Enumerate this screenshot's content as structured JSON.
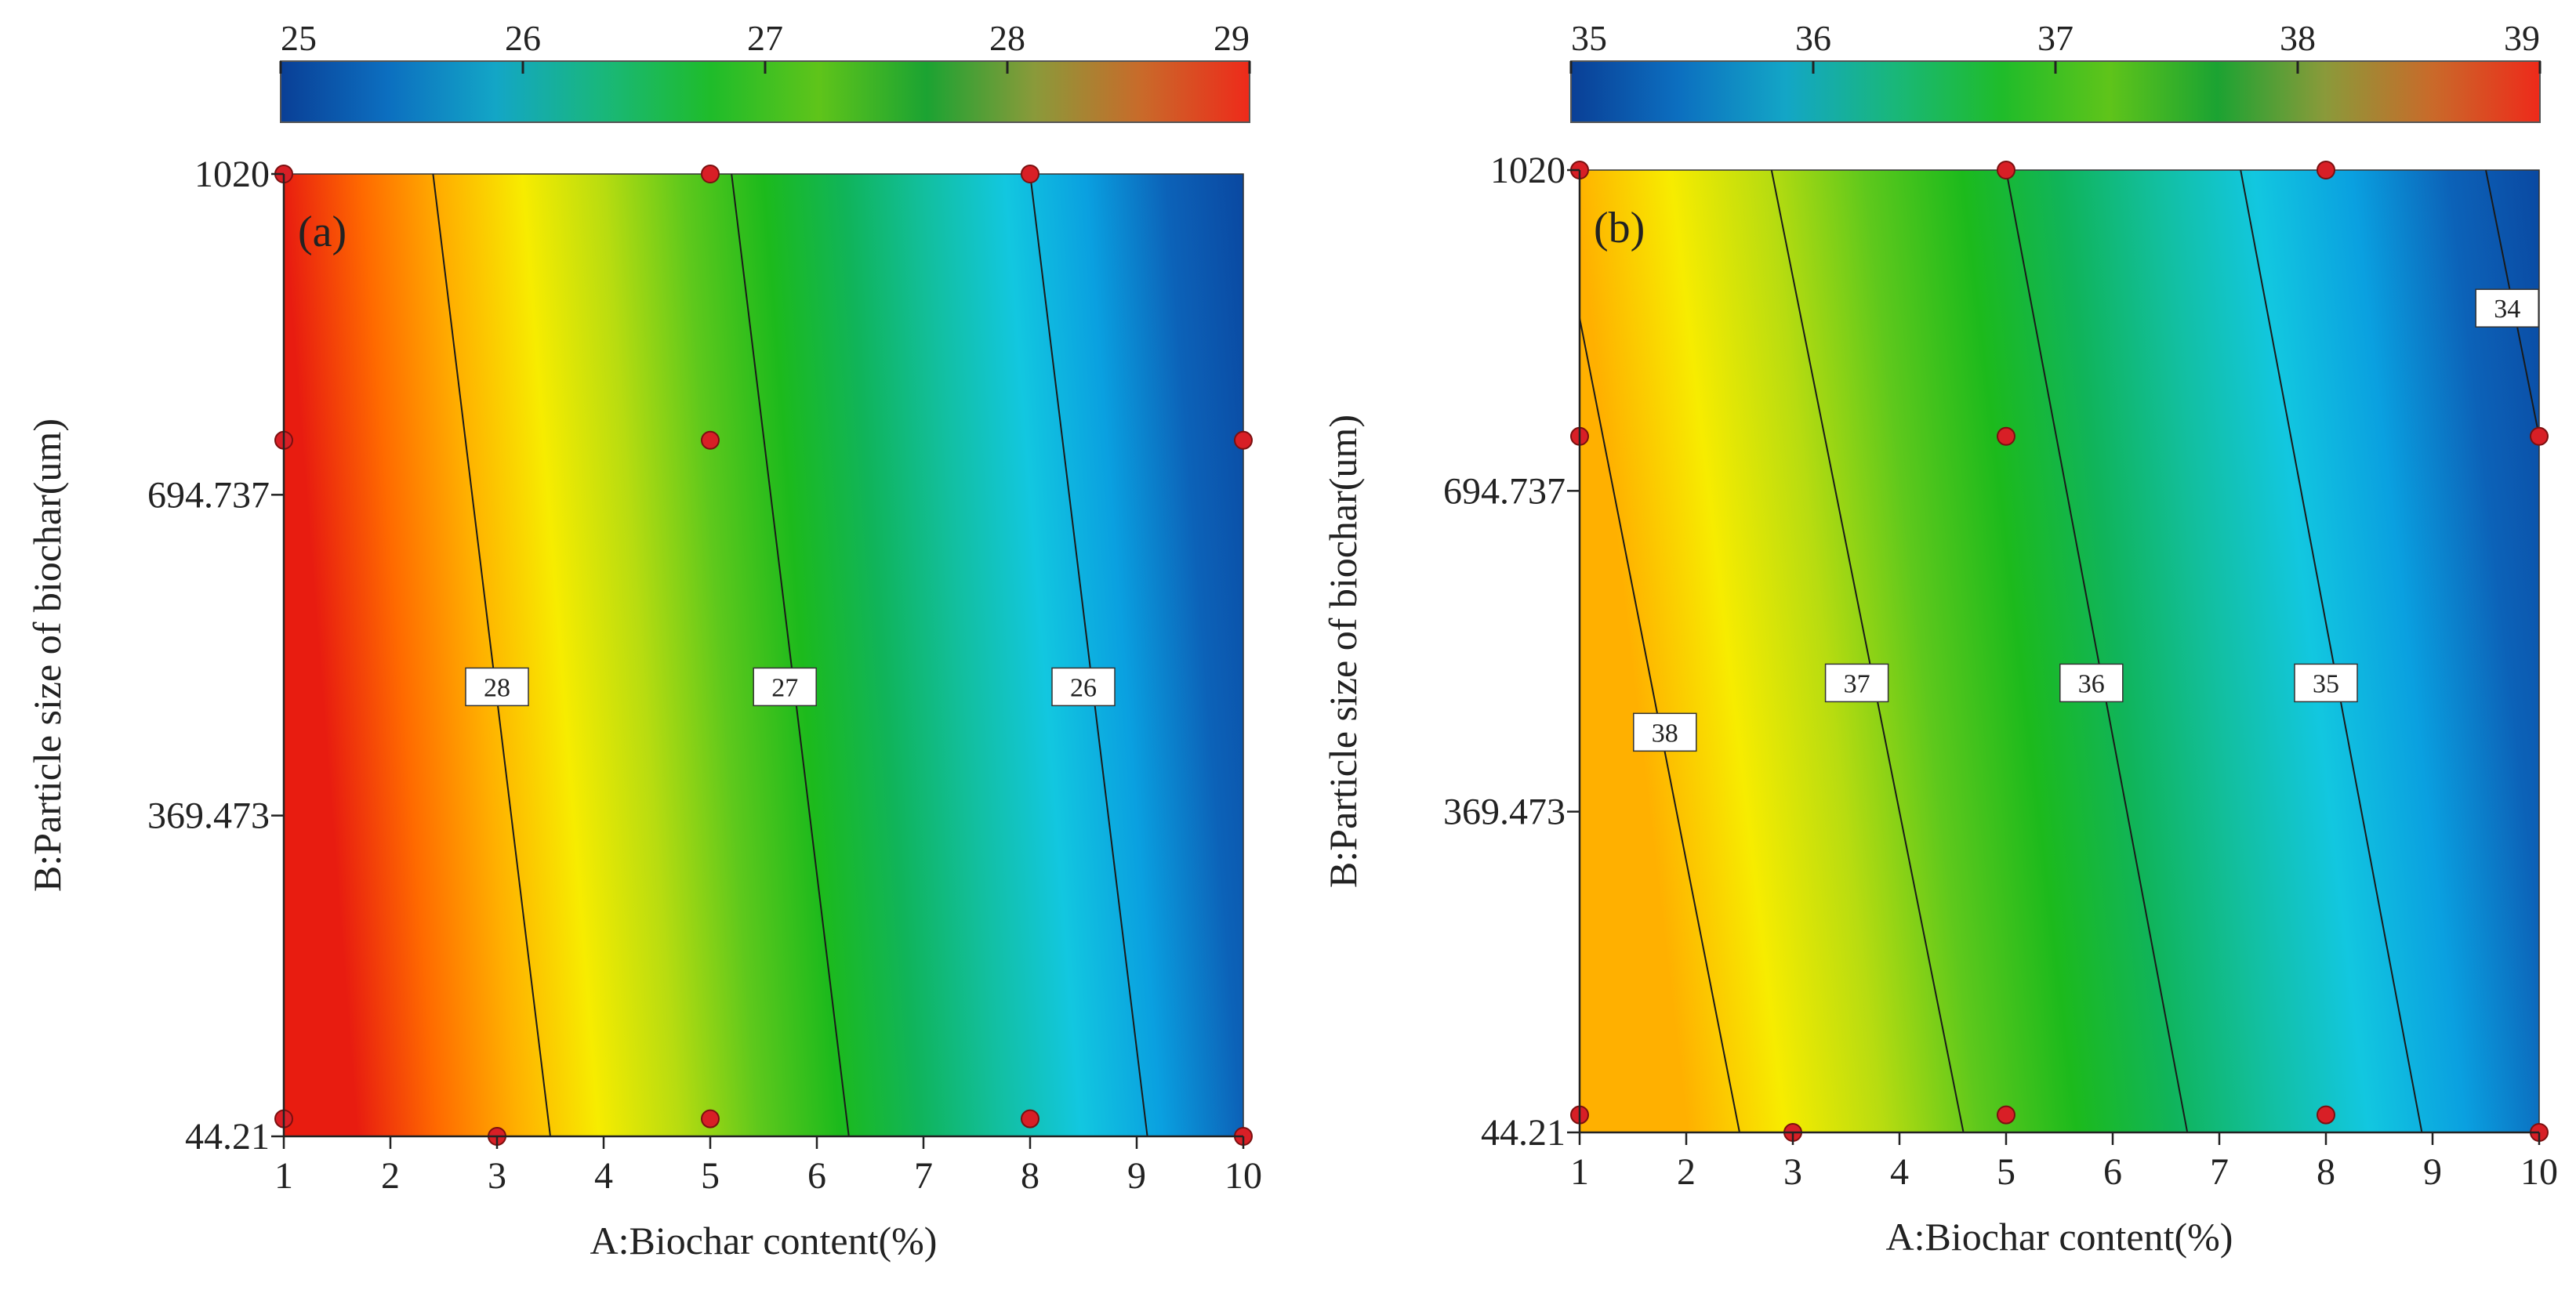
{
  "chart_data": [
    {
      "type": "contour",
      "panel_label": "(a)",
      "xlabel": "A:Biochar content(%)",
      "ylabel": "B:Particle size of biochar(um)",
      "xlim": [
        1,
        10
      ],
      "ylim": [
        44.21,
        1020
      ],
      "x_ticks": [
        "1",
        "2",
        "3",
        "4",
        "5",
        "6",
        "7",
        "8",
        "9",
        "10"
      ],
      "y_ticks": [
        {
          "value": 44.21,
          "label": "44.21"
        },
        {
          "value": 369.473,
          "label": "369.473"
        },
        {
          "value": 694.737,
          "label": "694.737"
        },
        {
          "value": 1020,
          "label": "1020"
        }
      ],
      "colorbar": {
        "min": 25,
        "max": 29,
        "ticks": [
          "25",
          "26",
          "27",
          "28",
          "29"
        ]
      },
      "contours": [
        {
          "level": 28,
          "label": "28",
          "bottom_x": 3.5,
          "top_x": 2.4,
          "label_at": [
            3.0,
            500
          ]
        },
        {
          "level": 27,
          "label": "27",
          "bottom_x": 6.3,
          "top_x": 5.2,
          "label_at": [
            5.7,
            500
          ]
        },
        {
          "level": 26,
          "label": "26",
          "bottom_x": 9.1,
          "top_x": 8.0,
          "label_at": [
            8.5,
            500
          ]
        }
      ],
      "points": [
        [
          1,
          1020
        ],
        [
          5,
          1020
        ],
        [
          8,
          1020
        ],
        [
          1,
          750
        ],
        [
          5,
          750
        ],
        [
          10,
          750
        ],
        [
          1,
          62
        ],
        [
          3,
          44.21
        ],
        [
          5,
          62
        ],
        [
          8,
          62
        ],
        [
          10,
          44.21
        ]
      ]
    },
    {
      "type": "contour",
      "panel_label": "(b)",
      "xlabel": "A:Biochar content(%)",
      "ylabel": "B:Particle size of biochar(um)",
      "xlim": [
        1,
        10
      ],
      "ylim": [
        44.21,
        1020
      ],
      "x_ticks": [
        "1",
        "2",
        "3",
        "4",
        "5",
        "6",
        "7",
        "8",
        "9",
        "10"
      ],
      "y_ticks": [
        {
          "value": 44.21,
          "label": "44.21"
        },
        {
          "value": 369.473,
          "label": "369.473"
        },
        {
          "value": 694.737,
          "label": "694.737"
        },
        {
          "value": 1020,
          "label": "1020"
        }
      ],
      "colorbar": {
        "min": 35,
        "max": 39,
        "ticks": [
          "35",
          "36",
          "37",
          "38",
          "39"
        ]
      },
      "contours": [
        {
          "level": 38,
          "label": "38",
          "bottom_x": 2.5,
          "top_x": 1.0,
          "top_y": 870,
          "label_at": [
            1.8,
            450
          ]
        },
        {
          "level": 37,
          "label": "37",
          "bottom_x": 4.6,
          "top_x": 2.8,
          "label_at": [
            3.6,
            500
          ]
        },
        {
          "level": 36,
          "label": "36",
          "bottom_x": 6.7,
          "top_x": 5.0,
          "label_at": [
            5.8,
            500
          ]
        },
        {
          "level": 35,
          "label": "35",
          "bottom_x": 8.9,
          "top_x": 7.2,
          "label_at": [
            8.0,
            500
          ]
        },
        {
          "level": 34,
          "label": "34",
          "bottom_x": 10.0,
          "top_x": 9.5,
          "top_y": 1020,
          "bottom_y": 750,
          "label_at": [
            9.7,
            880
          ]
        }
      ],
      "points": [
        [
          1,
          1020
        ],
        [
          5,
          1020
        ],
        [
          8,
          1020
        ],
        [
          1,
          750
        ],
        [
          5,
          750
        ],
        [
          10,
          750
        ],
        [
          1,
          62
        ],
        [
          3,
          44.21
        ],
        [
          5,
          62
        ],
        [
          8,
          62
        ],
        [
          10,
          44.21
        ]
      ]
    }
  ],
  "colors": {
    "gradient": [
      "#e81c10",
      "#ff6a00",
      "#ffb000",
      "#f7ec00",
      "#b8dc10",
      "#5ec81c",
      "#1cba1c",
      "#10b45a",
      "#12bfa0",
      "#12c7e0",
      "#0aa0e0",
      "#0c62b8",
      "#0a47a0"
    ],
    "colorbar": [
      "#0a3f96",
      "#0c6fc0",
      "#13a6c6",
      "#19b77a",
      "#1fbc2a",
      "#5fc41a",
      "#1ba332",
      "#8a9a3a",
      "#c96a2a",
      "#ee2a1a"
    ],
    "point_fill": "#d81f26",
    "point_stroke": "#7a1010"
  }
}
